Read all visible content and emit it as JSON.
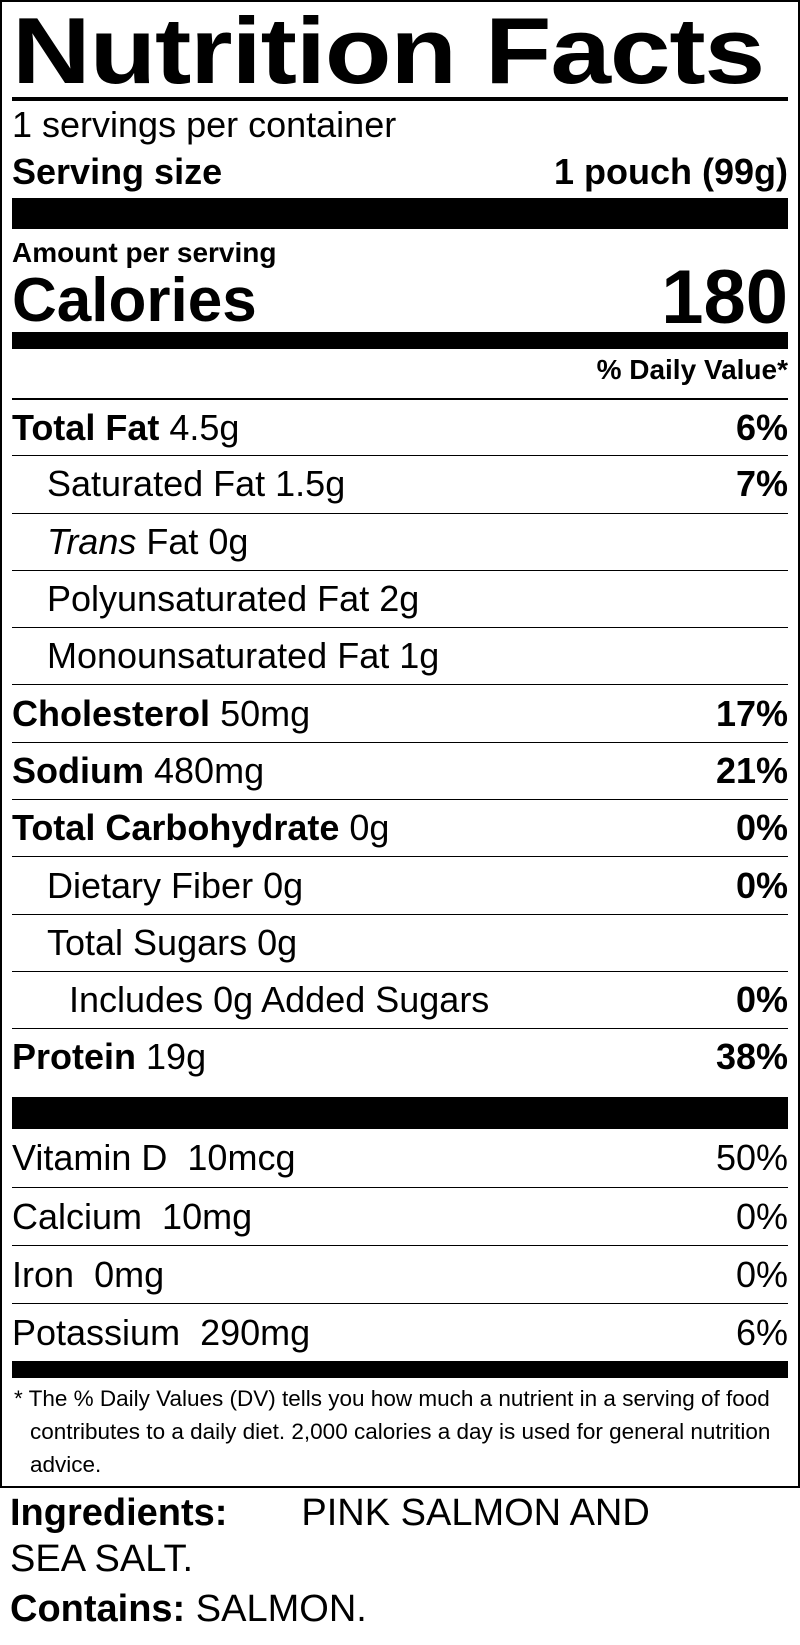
{
  "title": "Nutrition Facts",
  "servings_per_container": "1 servings per container",
  "serving_size": {
    "label": "Serving size",
    "value": "1 pouch (99g)"
  },
  "amount_per_serving": "Amount per serving",
  "calories": {
    "label": "Calories",
    "value": "180"
  },
  "daily_value_header": "% Daily Value*",
  "nutrients": [
    {
      "name": "Total Fat",
      "amount": "4.5g",
      "dv": "6%"
    },
    {
      "name": "Saturated Fat",
      "amount": "1.5g",
      "dv": "7%"
    },
    {
      "name": "Trans",
      "name_suffix": "Fat",
      "amount": "0g",
      "dv": ""
    },
    {
      "name": "Polyunsaturated Fat",
      "amount": "2g",
      "dv": ""
    },
    {
      "name": "Monounsaturated Fat",
      "amount": "1g",
      "dv": ""
    },
    {
      "name": "Cholesterol",
      "amount": "50mg",
      "dv": "17%"
    },
    {
      "name": "Sodium",
      "amount": "480mg",
      "dv": "21%"
    },
    {
      "name": "Total Carbohydrate",
      "amount": "0g",
      "dv": "0%"
    },
    {
      "name": "Dietary Fiber",
      "amount": "0g",
      "dv": "0%"
    },
    {
      "name": "Total Sugars",
      "amount": "0g",
      "dv": ""
    },
    {
      "name": "Includes 0g Added Sugars",
      "amount": "",
      "dv": "0%"
    },
    {
      "name": "Protein",
      "amount": "19g",
      "dv": "38%"
    }
  ],
  "vitamins": [
    {
      "name": "Vitamin D",
      "amount": "10mcg",
      "dv": "50%"
    },
    {
      "name": "Calcium",
      "amount": "10mg",
      "dv": "0%"
    },
    {
      "name": "Iron",
      "amount": "0mg",
      "dv": "0%"
    },
    {
      "name": "Potassium",
      "amount": "290mg",
      "dv": "6%"
    }
  ],
  "footnote": "* The % Daily Values (DV) tells you how much a nutrient in a serving of food contributes to a daily diet. 2,000 calories a day is used for general nutrition advice.",
  "ingredients": {
    "label": "Ingredients:",
    "text": "PINK SALMON AND SEA SALT."
  },
  "contains": {
    "label": "Contains:",
    "text": "SALMON."
  }
}
